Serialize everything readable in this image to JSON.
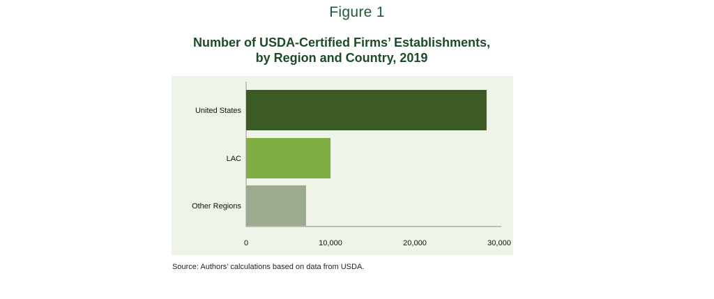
{
  "figure_label": "Figure 1",
  "title_line1": "Number of USDA-Certified Firms’ Establishments,",
  "title_line2": "by Region and Country, 2019",
  "source": "Source: Authors’ calculations based on data from USDA.",
  "colors": {
    "background": "#eef4e7",
    "united_states": "#3c5a24",
    "lac": "#80ad41",
    "other_regions": "#9caa8e"
  },
  "chart_data": {
    "type": "bar",
    "orientation": "horizontal",
    "title": "Number of USDA-Certified Firms’ Establishments, by Region and Country, 2019",
    "xlabel": "",
    "ylabel": "",
    "xlim": [
      0,
      30000
    ],
    "x_ticks": [
      "0",
      "10,000",
      "20,000",
      "30,000"
    ],
    "grid": false,
    "categories": [
      "United States",
      "LAC",
      "Other Regions"
    ],
    "values": [
      28500,
      10000,
      7100
    ],
    "bar_colors": [
      "#3c5a24",
      "#80ad41",
      "#9caa8e"
    ]
  }
}
